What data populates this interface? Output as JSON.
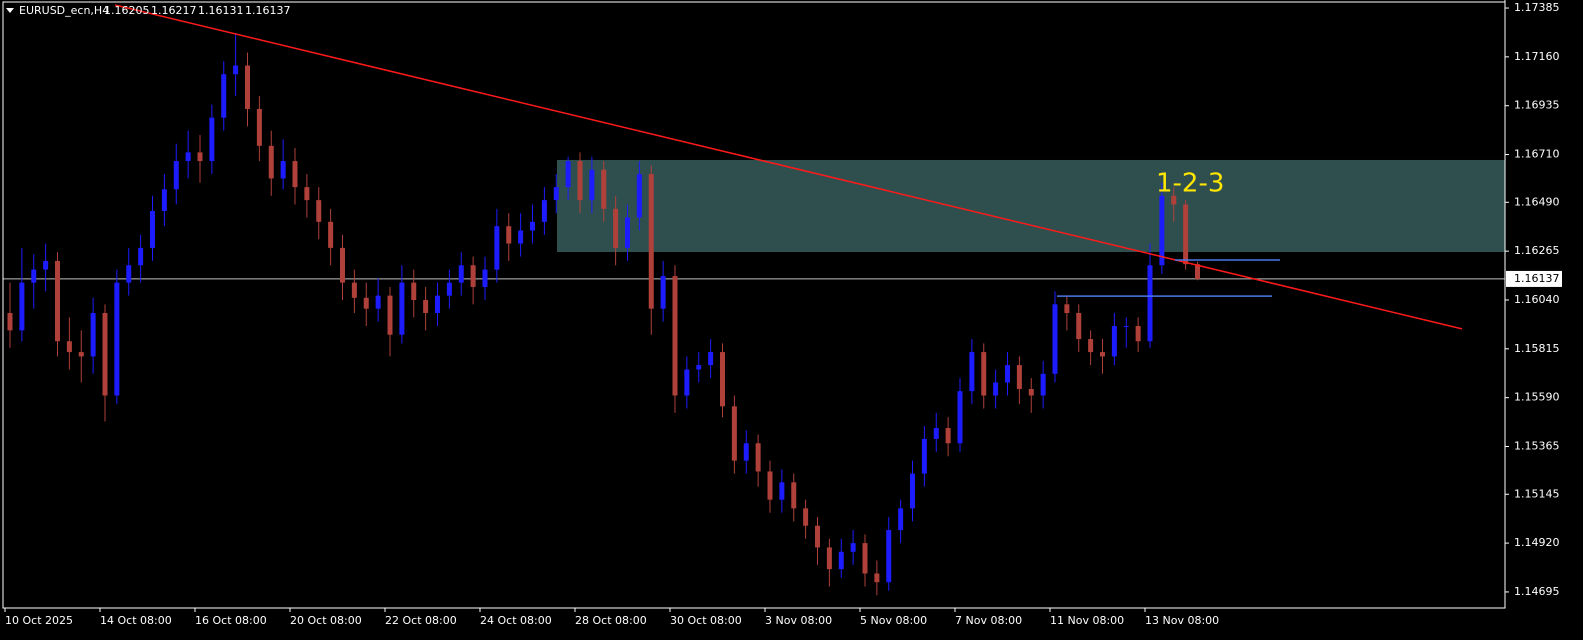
{
  "chart_data": {
    "type": "candlestick",
    "symbol": "EURUSD_ecn,H4",
    "bull_color": "#1c1cff",
    "bear_color": "#b0403a",
    "zone_color": "#2f4f4f",
    "trend_color": "#ff1a1a",
    "level_color": "#4a78e8",
    "annotation_color": "#ffe600",
    "ylim": [
      1.14621,
      1.17422
    ],
    "yticks": [
      1.17385,
      {
        "value": 1.1716,
        "label": "1.17160"
      },
      1.16935,
      {
        "value": 1.1671,
        "label": "1.16710"
      },
      {
        "value": 1.1649,
        "label": "1.16490"
      },
      1.16265,
      {
        "value": 1.1604,
        "label": "1.16040"
      },
      1.15815,
      {
        "value": 1.1559,
        "label": "1.15590"
      },
      1.15365,
      1.15145,
      {
        "value": 1.1492,
        "label": "1.14920"
      },
      1.14695
    ],
    "categories": [
      "10 Oct 2025",
      null,
      null,
      null,
      null,
      null,
      null,
      null,
      "14 Oct 08:00",
      null,
      null,
      null,
      null,
      null,
      null,
      null,
      "16 Oct 08:00",
      null,
      null,
      null,
      null,
      null,
      null,
      null,
      "20 Oct 08:00",
      null,
      null,
      null,
      null,
      null,
      null,
      null,
      "22 Oct 08:00",
      null,
      null,
      null,
      null,
      null,
      null,
      null,
      "24 Oct 08:00",
      null,
      null,
      null,
      null,
      null,
      null,
      null,
      "28 Oct 08:00",
      null,
      null,
      null,
      null,
      null,
      null,
      null,
      "30 Oct 08:00",
      null,
      null,
      null,
      null,
      null,
      null,
      null,
      "3 Nov 08:00",
      null,
      null,
      null,
      null,
      null,
      null,
      null,
      "5 Nov 08:00",
      null,
      null,
      null,
      null,
      null,
      null,
      null,
      "7 Nov 08:00",
      null,
      null,
      null,
      null,
      null,
      null,
      null,
      "11 Nov 08:00",
      null,
      null,
      null,
      null,
      null,
      null,
      null,
      "13 Nov 08:00",
      null,
      null,
      null,
      null
    ],
    "candles": [
      [
        1.1598,
        1.1612,
        1.1582,
        1.159
      ],
      [
        1.159,
        1.1628,
        1.1585,
        1.1612
      ],
      [
        1.1612,
        1.1625,
        1.16,
        1.1618
      ],
      [
        1.1618,
        1.163,
        1.1608,
        1.1622
      ],
      [
        1.1622,
        1.1626,
        1.1578,
        1.1585
      ],
      [
        1.1585,
        1.1596,
        1.1572,
        1.158
      ],
      [
        1.158,
        1.159,
        1.1566,
        1.1578
      ],
      [
        1.1578,
        1.1605,
        1.157,
        1.1598
      ],
      [
        1.1598,
        1.1602,
        1.1548,
        1.156
      ],
      [
        1.156,
        1.1618,
        1.1556,
        1.1612
      ],
      [
        1.1612,
        1.1628,
        1.1606,
        1.162
      ],
      [
        1.162,
        1.1634,
        1.1612,
        1.1628
      ],
      [
        1.1628,
        1.1652,
        1.1622,
        1.1645
      ],
      [
        1.1645,
        1.1662,
        1.1638,
        1.1655
      ],
      [
        1.1655,
        1.1676,
        1.1648,
        1.1668
      ],
      [
        1.1668,
        1.1682,
        1.166,
        1.1672
      ],
      [
        1.1672,
        1.168,
        1.1658,
        1.1668
      ],
      [
        1.1668,
        1.1694,
        1.1662,
        1.1688
      ],
      [
        1.1688,
        1.1714,
        1.1682,
        1.1708
      ],
      [
        1.1708,
        1.1727,
        1.1698,
        1.1712
      ],
      [
        1.1712,
        1.1718,
        1.1684,
        1.1692
      ],
      [
        1.1692,
        1.1698,
        1.1668,
        1.1675
      ],
      [
        1.1675,
        1.1682,
        1.1652,
        1.166
      ],
      [
        1.166,
        1.1678,
        1.1655,
        1.1668
      ],
      [
        1.1668,
        1.1674,
        1.1648,
        1.1656
      ],
      [
        1.1656,
        1.1662,
        1.1642,
        1.165
      ],
      [
        1.165,
        1.1656,
        1.1632,
        1.164
      ],
      [
        1.164,
        1.1646,
        1.162,
        1.1628
      ],
      [
        1.1628,
        1.1634,
        1.1604,
        1.1612
      ],
      [
        1.1612,
        1.1618,
        1.1598,
        1.1605
      ],
      [
        1.1605,
        1.1612,
        1.1592,
        1.16
      ],
      [
        1.16,
        1.1614,
        1.1594,
        1.1606
      ],
      [
        1.1606,
        1.161,
        1.1578,
        1.1588
      ],
      [
        1.1588,
        1.162,
        1.1584,
        1.1612
      ],
      [
        1.1612,
        1.1618,
        1.1596,
        1.1604
      ],
      [
        1.1604,
        1.161,
        1.159,
        1.1598
      ],
      [
        1.1598,
        1.1612,
        1.1592,
        1.1606
      ],
      [
        1.1606,
        1.1618,
        1.16,
        1.1612
      ],
      [
        1.1612,
        1.1626,
        1.1606,
        1.162
      ],
      [
        1.162,
        1.1624,
        1.1602,
        1.161
      ],
      [
        1.161,
        1.1624,
        1.1604,
        1.1618
      ],
      [
        1.1618,
        1.1646,
        1.1612,
        1.1638
      ],
      [
        1.1638,
        1.1644,
        1.1622,
        1.163
      ],
      [
        1.163,
        1.1644,
        1.1624,
        1.1636
      ],
      [
        1.1636,
        1.1648,
        1.163,
        1.164
      ],
      [
        1.164,
        1.1656,
        1.1634,
        1.165
      ],
      [
        1.165,
        1.1662,
        1.1644,
        1.1656
      ],
      [
        1.1656,
        1.167,
        1.165,
        1.1668
      ],
      [
        1.1668,
        1.1672,
        1.1644,
        1.165
      ],
      [
        1.165,
        1.167,
        1.1644,
        1.1664
      ],
      [
        1.1664,
        1.1668,
        1.164,
        1.1646
      ],
      [
        1.1646,
        1.1652,
        1.162,
        1.1628
      ],
      [
        1.1628,
        1.1648,
        1.1622,
        1.1642
      ],
      [
        1.1642,
        1.1668,
        1.1636,
        1.1662
      ],
      [
        1.1662,
        1.1666,
        1.1588,
        1.16
      ],
      [
        1.16,
        1.1622,
        1.1594,
        1.1615
      ],
      [
        1.1615,
        1.162,
        1.1552,
        1.156
      ],
      [
        1.156,
        1.1578,
        1.1554,
        1.1572
      ],
      [
        1.1572,
        1.158,
        1.1566,
        1.1574
      ],
      [
        1.1574,
        1.1586,
        1.1568,
        1.158
      ],
      [
        1.158,
        1.1584,
        1.155,
        1.1555
      ],
      [
        1.1555,
        1.156,
        1.1524,
        1.153
      ],
      [
        1.153,
        1.1544,
        1.1524,
        1.1538
      ],
      [
        1.1538,
        1.1542,
        1.1518,
        1.1525
      ],
      [
        1.1525,
        1.153,
        1.1506,
        1.1512
      ],
      [
        1.1512,
        1.1526,
        1.1506,
        1.152
      ],
      [
        1.152,
        1.1524,
        1.1502,
        1.1508
      ],
      [
        1.1508,
        1.1512,
        1.1494,
        1.15
      ],
      [
        1.15,
        1.1504,
        1.1482,
        1.149
      ],
      [
        1.149,
        1.1494,
        1.1472,
        1.148
      ],
      [
        1.148,
        1.1494,
        1.1476,
        1.1488
      ],
      [
        1.1488,
        1.1498,
        1.1482,
        1.1492
      ],
      [
        1.1492,
        1.1496,
        1.1472,
        1.1478
      ],
      [
        1.1478,
        1.1484,
        1.1468,
        1.1474
      ],
      [
        1.1474,
        1.1504,
        1.147,
        1.1498
      ],
      [
        1.1498,
        1.1512,
        1.1492,
        1.1508
      ],
      [
        1.1508,
        1.153,
        1.1502,
        1.1524
      ],
      [
        1.1524,
        1.1546,
        1.1518,
        1.154
      ],
      [
        1.154,
        1.1552,
        1.1534,
        1.1545
      ],
      [
        1.1545,
        1.155,
        1.1532,
        1.1538
      ],
      [
        1.1538,
        1.1568,
        1.1534,
        1.1562
      ],
      [
        1.1562,
        1.1586,
        1.1556,
        1.158
      ],
      [
        1.158,
        1.1584,
        1.1554,
        1.156
      ],
      [
        1.156,
        1.1572,
        1.1554,
        1.1566
      ],
      [
        1.1566,
        1.158,
        1.156,
        1.1574
      ],
      [
        1.1574,
        1.1578,
        1.1556,
        1.1563
      ],
      [
        1.1563,
        1.1568,
        1.1552,
        1.156
      ],
      [
        1.156,
        1.1576,
        1.1554,
        1.157
      ],
      [
        1.157,
        1.1608,
        1.1566,
        1.1602
      ],
      [
        1.1602,
        1.1606,
        1.159,
        1.1598
      ],
      [
        1.1598,
        1.1602,
        1.158,
        1.1586
      ],
      [
        1.1586,
        1.159,
        1.1574,
        1.158
      ],
      [
        1.158,
        1.1586,
        1.157,
        1.1578
      ],
      [
        1.1578,
        1.1598,
        1.1574,
        1.1592
      ],
      [
        1.1592,
        1.1596,
        1.1582,
        1.1592
      ],
      [
        1.1592,
        1.1596,
        1.158,
        1.1585
      ],
      [
        1.1585,
        1.163,
        1.1582,
        1.162
      ],
      [
        1.162,
        1.1658,
        1.1616,
        1.1652
      ],
      [
        1.1652,
        1.1656,
        1.164,
        1.1648
      ],
      [
        1.1648,
        1.165,
        1.1618,
        1.16205
      ],
      [
        1.16205,
        1.16217,
        1.16131,
        1.16137
      ]
    ],
    "zone": [
      1.16261,
      1.16685
    ],
    "trendline": [
      1.17399,
      1.15907
    ],
    "levels": [
      1.16224,
      1.16058
    ],
    "annotation": "1-2-3"
  }
}
